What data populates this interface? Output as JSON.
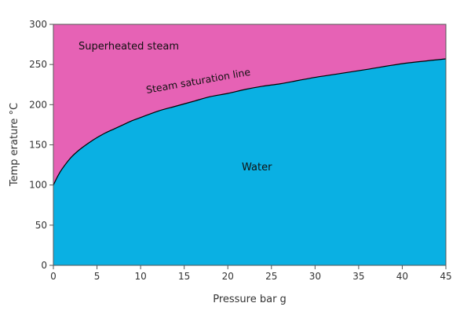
{
  "chart_data": {
    "type": "area",
    "title": "",
    "xlabel": "Pressure bar g",
    "ylabel": "Temp erature °C",
    "xlim": [
      0,
      45
    ],
    "ylim": [
      0,
      300
    ],
    "x_ticks": [
      "0",
      "5",
      "10",
      "15",
      "20",
      "25",
      "30",
      "35",
      "40",
      "45"
    ],
    "y_ticks": [
      "0",
      "50",
      "100",
      "150",
      "200",
      "250",
      "300"
    ],
    "grid": false,
    "legend": "none",
    "colors": {
      "water": "#0ab0e3",
      "steam": "#e662b5",
      "line": "#000000"
    },
    "regions": {
      "upper": "Superheated steam",
      "lower": "Water"
    },
    "series": [
      {
        "name": "Steam saturation line",
        "x": [
          0,
          0.5,
          1,
          2,
          3,
          4,
          5,
          6,
          7,
          8,
          9,
          10,
          12,
          14,
          16,
          18,
          20,
          22,
          24,
          26,
          28,
          30,
          33,
          36,
          40,
          45
        ],
        "y": [
          100,
          111,
          120,
          134,
          144,
          152,
          159,
          165,
          170,
          175,
          180,
          184,
          192,
          198,
          204,
          210,
          214,
          219,
          223,
          226,
          230,
          234,
          239,
          244,
          251,
          257
        ]
      }
    ]
  }
}
